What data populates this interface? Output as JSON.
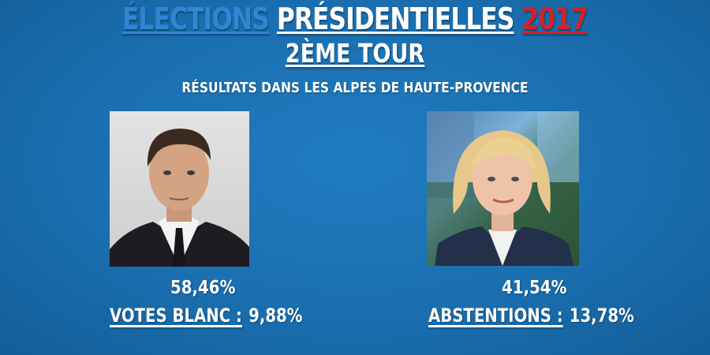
{
  "header": {
    "title_part1": "ÉLECTIONS",
    "title_part2": "PRÉSIDENTIELLES",
    "title_part3": "2017",
    "subtitle": "2ÈME TOUR",
    "region": "RÉSULTATS DANS LES ALPES DE HAUTE-PROVENCE"
  },
  "colors": {
    "background": "#1a6fb0",
    "title_blue": "#2f86d6",
    "title_red": "#d2222a",
    "text": "#ffffff"
  },
  "candidates": [
    {
      "result": "58,46%",
      "stat_label": "VOTES BLANC :",
      "stat_value": "9,88%"
    },
    {
      "result": "41,54%",
      "stat_label": "ABSTENTIONS :",
      "stat_value": "13,78%"
    }
  ]
}
